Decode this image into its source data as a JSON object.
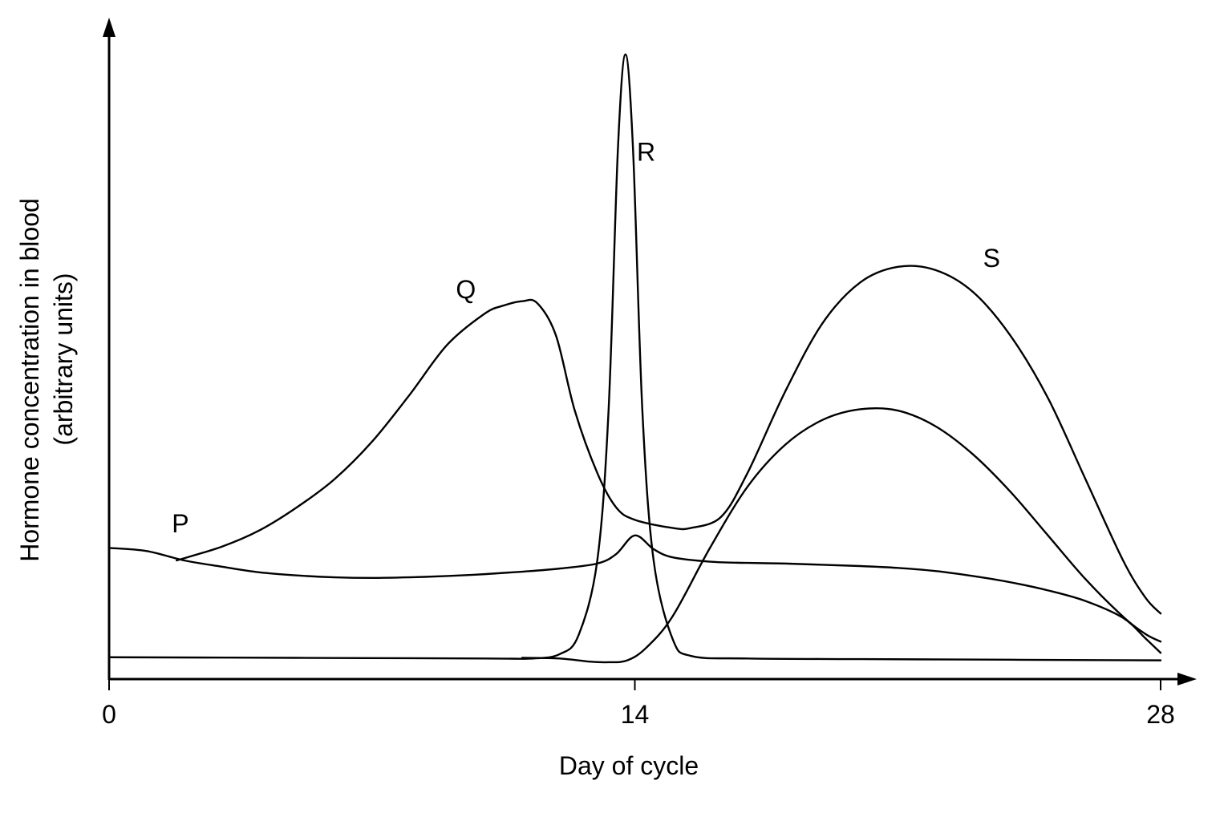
{
  "chart_data": {
    "type": "line",
    "title": "",
    "xlabel": "Day of cycle",
    "ylabel_line1": "Hormone concentration in blood",
    "ylabel_line2": "(arbitrary units)",
    "xlim": [
      0,
      28.5
    ],
    "ylim": [
      0,
      10
    ],
    "x_ticks": [
      {
        "value": 0,
        "label": "0"
      },
      {
        "value": 14,
        "label": "14"
      },
      {
        "value": 28,
        "label": "28"
      }
    ],
    "grid": false,
    "legend": "none",
    "series": [
      {
        "name": "P",
        "label_at": [
          1.9,
          2.35
        ],
        "points": [
          [
            0,
            2.1
          ],
          [
            1,
            2.05
          ],
          [
            2,
            1.9
          ],
          [
            3,
            1.8
          ],
          [
            4,
            1.71
          ],
          [
            5,
            1.66
          ],
          [
            6,
            1.63
          ],
          [
            7,
            1.62
          ],
          [
            8,
            1.63
          ],
          [
            9,
            1.65
          ],
          [
            10,
            1.68
          ],
          [
            11,
            1.72
          ],
          [
            12,
            1.77
          ],
          [
            13,
            1.85
          ],
          [
            13.5,
            2.0
          ],
          [
            14,
            2.3
          ],
          [
            14.5,
            2.08
          ],
          [
            15,
            1.95
          ],
          [
            16,
            1.88
          ],
          [
            17,
            1.86
          ],
          [
            18,
            1.85
          ],
          [
            19,
            1.83
          ],
          [
            20,
            1.81
          ],
          [
            21,
            1.78
          ],
          [
            22,
            1.73
          ],
          [
            23,
            1.65
          ],
          [
            24,
            1.55
          ],
          [
            25,
            1.42
          ],
          [
            26,
            1.25
          ],
          [
            27,
            0.98
          ],
          [
            27.6,
            0.65
          ],
          [
            28,
            0.42
          ]
        ]
      },
      {
        "name": "Q",
        "label_at": [
          9.5,
          6.1
        ],
        "points": [
          [
            1.8,
            1.9
          ],
          [
            3,
            2.12
          ],
          [
            4,
            2.38
          ],
          [
            5,
            2.75
          ],
          [
            6,
            3.2
          ],
          [
            7,
            3.8
          ],
          [
            8,
            4.55
          ],
          [
            9,
            5.35
          ],
          [
            10,
            5.85
          ],
          [
            10.5,
            5.98
          ],
          [
            11,
            6.05
          ],
          [
            11.4,
            6.02
          ],
          [
            11.9,
            5.5
          ],
          [
            12.4,
            4.3
          ],
          [
            13,
            3.3
          ],
          [
            13.5,
            2.75
          ],
          [
            14,
            2.55
          ],
          [
            15,
            2.42
          ],
          [
            15.5,
            2.42
          ],
          [
            16.3,
            2.6
          ],
          [
            17,
            3.3
          ],
          [
            18,
            4.6
          ],
          [
            19,
            5.7
          ],
          [
            20,
            6.35
          ],
          [
            21,
            6.6
          ],
          [
            22,
            6.55
          ],
          [
            23,
            6.2
          ],
          [
            24,
            5.5
          ],
          [
            25,
            4.5
          ],
          [
            26,
            3.2
          ],
          [
            27,
            1.9
          ],
          [
            27.6,
            1.3
          ],
          [
            28,
            1.05
          ]
        ]
      },
      {
        "name": "R",
        "label_at": [
          14.3,
          8.3
        ],
        "points": [
          [
            0,
            0.35
          ],
          [
            5,
            0.34
          ],
          [
            10,
            0.33
          ],
          [
            11.3,
            0.33
          ],
          [
            12,
            0.4
          ],
          [
            12.5,
            0.7
          ],
          [
            13,
            1.9
          ],
          [
            13.3,
            4.3
          ],
          [
            13.55,
            8.5
          ],
          [
            13.75,
            10.0
          ],
          [
            13.95,
            8.5
          ],
          [
            14.2,
            4.3
          ],
          [
            14.5,
            1.9
          ],
          [
            15,
            0.65
          ],
          [
            15.5,
            0.37
          ],
          [
            17,
            0.33
          ],
          [
            20,
            0.32
          ],
          [
            24,
            0.31
          ],
          [
            28,
            0.3
          ]
        ]
      },
      {
        "name": "S",
        "label_at": [
          23.5,
          6.6
        ],
        "points": [
          [
            11,
            0.34
          ],
          [
            12,
            0.33
          ],
          [
            12.8,
            0.28
          ],
          [
            13.3,
            0.27
          ],
          [
            13.8,
            0.3
          ],
          [
            14.3,
            0.5
          ],
          [
            15,
            1.0
          ],
          [
            16,
            2.1
          ],
          [
            17,
            3.08
          ],
          [
            18,
            3.75
          ],
          [
            19,
            4.15
          ],
          [
            20,
            4.32
          ],
          [
            21,
            4.3
          ],
          [
            22,
            4.05
          ],
          [
            23,
            3.6
          ],
          [
            24,
            3.0
          ],
          [
            25,
            2.3
          ],
          [
            26,
            1.6
          ],
          [
            27,
            1.0
          ],
          [
            27.6,
            0.72
          ],
          [
            28,
            0.6
          ]
        ]
      }
    ]
  }
}
